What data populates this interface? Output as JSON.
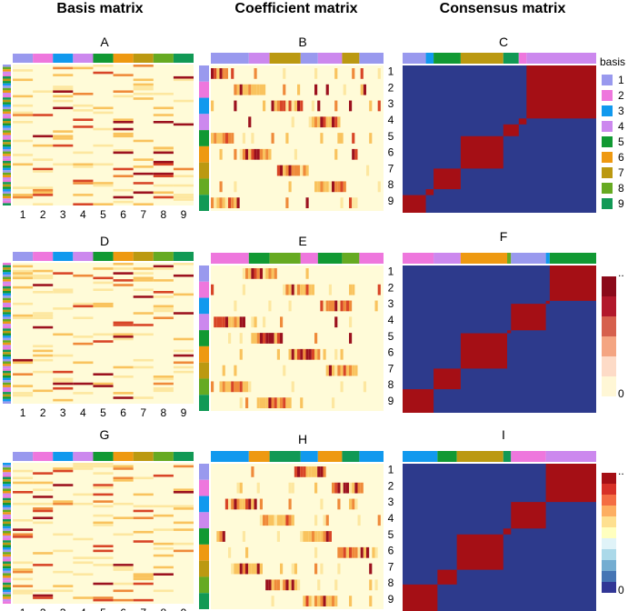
{
  "chart_data": {
    "type": "heatmap",
    "column_titles": [
      "Basis matrix",
      "Coefficient matrix",
      "Consensus matrix"
    ],
    "panel_labels": [
      "A",
      "B",
      "C",
      "D",
      "E",
      "F",
      "G",
      "H",
      "I"
    ],
    "basis_labels": [
      "1",
      "2",
      "3",
      "4",
      "5",
      "6",
      "7",
      "8",
      "9"
    ],
    "legend_title": "basis",
    "colorbar_max_label": "..",
    "colorbar_min_label": "0",
    "basis_colors": [
      "#9999ee",
      "#ee77dd",
      "#1199ee",
      "#cc88ee",
      "#119933",
      "#ee9911",
      "#bb9911",
      "#66aa22",
      "#119955"
    ],
    "heat_colors": [
      "#fffbd8",
      "#fde7a0",
      "#f9c35e",
      "#ef8a3a",
      "#d84527",
      "#9b111e"
    ],
    "consensus_colors": {
      "low": "#2d3a8c",
      "high": "#a50f15",
      "mid_light": "#a6cfe4",
      "mid_warm": "#f4a460"
    },
    "consensus_blocks": {
      "C": [
        [
          0,
          0.12
        ],
        [
          0.12,
          0.16
        ],
        [
          0.16,
          0.3
        ],
        [
          0.3,
          0.52
        ],
        [
          0.52,
          0.6
        ],
        [
          0.6,
          0.64
        ],
        [
          0.64,
          1.0
        ]
      ],
      "F": [
        [
          0,
          0.16
        ],
        [
          0.16,
          0.3
        ],
        [
          0.3,
          0.54
        ],
        [
          0.54,
          0.56
        ],
        [
          0.56,
          0.74
        ],
        [
          0.74,
          0.76
        ],
        [
          0.76,
          1.0
        ]
      ],
      "I": [
        [
          0,
          0.18
        ],
        [
          0.18,
          0.28
        ],
        [
          0.28,
          0.52
        ],
        [
          0.52,
          0.56
        ],
        [
          0.56,
          0.74
        ],
        [
          0.74,
          1.0
        ]
      ]
    },
    "rows_per_panel": 9
  }
}
